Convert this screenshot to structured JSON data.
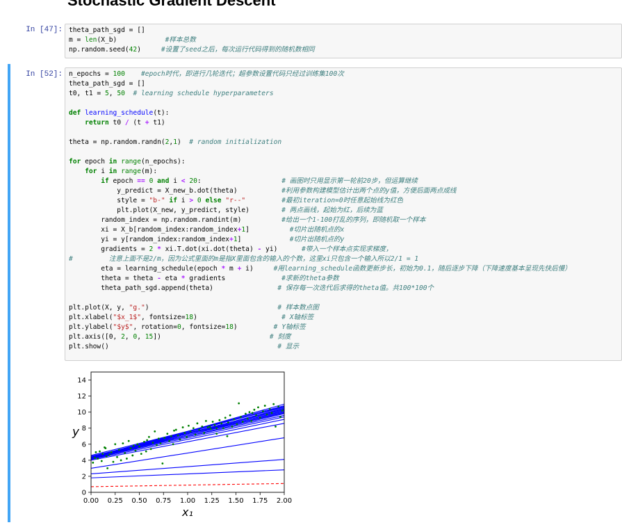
{
  "notebook": {
    "section_title": "Stochastic Gradient Descent"
  },
  "cells": [
    {
      "prompt": "In  [47]:",
      "lines": [
        [
          [
            "plain",
            "theta_path_sgd = []"
          ]
        ],
        [
          [
            "plain",
            "m = "
          ],
          [
            "bi",
            "len"
          ],
          [
            "plain",
            "(X_b)"
          ],
          [
            "plain",
            "            "
          ],
          [
            "cmt",
            "#样本总数"
          ]
        ],
        [
          [
            "plain",
            "np.random.seed("
          ],
          [
            "num",
            "42"
          ],
          [
            "plain",
            ")"
          ],
          [
            "plain",
            "     "
          ],
          [
            "cmt",
            "#设置了seed之后，每次运行代码得到的随机数相同"
          ]
        ]
      ]
    },
    {
      "prompt": "In  [52]:",
      "lines": [
        [
          [
            "plain",
            "n_epochs = "
          ],
          [
            "num",
            "100"
          ],
          [
            "plain",
            "    "
          ],
          [
            "cmt",
            "#epoch时代，即进行几轮迭代；超参数设置代码只经过训练集100次"
          ]
        ],
        [
          [
            "plain",
            "theta_path_sgd = []"
          ]
        ],
        [
          [
            "plain",
            "t0, t1 = "
          ],
          [
            "num",
            "5"
          ],
          [
            "plain",
            ", "
          ],
          [
            "num",
            "50"
          ],
          [
            "plain",
            "  "
          ],
          [
            "cmt",
            "# learning schedule hyperparameters"
          ]
        ],
        [],
        [
          [
            "kw",
            "def"
          ],
          [
            "plain",
            " "
          ],
          [
            "fn",
            "learning_schedule"
          ],
          [
            "plain",
            "(t):"
          ]
        ],
        [
          [
            "plain",
            "    "
          ],
          [
            "kw",
            "return"
          ],
          [
            "plain",
            " t0 "
          ],
          [
            "op",
            "/"
          ],
          [
            "plain",
            " (t "
          ],
          [
            "op",
            "+"
          ],
          [
            "plain",
            " t1)"
          ]
        ],
        [],
        [
          [
            "plain",
            "theta = np.random.randn("
          ],
          [
            "num",
            "2"
          ],
          [
            "plain",
            ","
          ],
          [
            "num",
            "1"
          ],
          [
            "plain",
            ")  "
          ],
          [
            "cmt",
            "# random initialization"
          ]
        ],
        [],
        [
          [
            "kw",
            "for"
          ],
          [
            "plain",
            " epoch "
          ],
          [
            "kw",
            "in"
          ],
          [
            "plain",
            " "
          ],
          [
            "bi",
            "range"
          ],
          [
            "plain",
            "(n_epochs):"
          ]
        ],
        [
          [
            "plain",
            "    "
          ],
          [
            "kw",
            "for"
          ],
          [
            "plain",
            " i "
          ],
          [
            "kw",
            "in"
          ],
          [
            "plain",
            " "
          ],
          [
            "bi",
            "range"
          ],
          [
            "plain",
            "(m):"
          ]
        ],
        [
          [
            "plain",
            "        "
          ],
          [
            "kw",
            "if"
          ],
          [
            "plain",
            " epoch "
          ],
          [
            "op",
            "=="
          ],
          [
            "plain",
            " "
          ],
          [
            "num",
            "0"
          ],
          [
            "plain",
            " "
          ],
          [
            "kw",
            "and"
          ],
          [
            "plain",
            " i "
          ],
          [
            "op",
            "<"
          ],
          [
            "plain",
            " "
          ],
          [
            "num",
            "20"
          ],
          [
            "plain",
            ":                    "
          ],
          [
            "cmt",
            "# 画图时只用显示第一轮前20步，但运算继续"
          ]
        ],
        [
          [
            "plain",
            "            y_predict = X_new_b.dot(theta)           "
          ],
          [
            "cmt",
            "#利用参数构建模型估计出两个点的y值，方便后面两点成线"
          ]
        ],
        [
          [
            "plain",
            "            style = "
          ],
          [
            "str",
            "\"b-\""
          ],
          [
            "plain",
            " "
          ],
          [
            "kw",
            "if"
          ],
          [
            "plain",
            " i "
          ],
          [
            "op",
            ">"
          ],
          [
            "plain",
            " "
          ],
          [
            "num",
            "0"
          ],
          [
            "plain",
            " "
          ],
          [
            "kw",
            "else"
          ],
          [
            "plain",
            " "
          ],
          [
            "str",
            "\"r--\""
          ],
          [
            "plain",
            "         "
          ],
          [
            "cmt",
            "#最初iteration=0时任意起始线为红色"
          ]
        ],
        [
          [
            "plain",
            "            plt.plot(X_new, y_predict, style)        "
          ],
          [
            "cmt",
            "# 两点画线，起始为红，后续为蓝"
          ]
        ],
        [
          [
            "plain",
            "        random_index = np.random.randint(m)          "
          ],
          [
            "cmt",
            "#给出一个1-100打乱的序列，即随机取一个样本"
          ]
        ],
        [
          [
            "plain",
            "        xi = X_b[random_index:random_index"
          ],
          [
            "op",
            "+"
          ],
          [
            "num",
            "1"
          ],
          [
            "plain",
            "]          "
          ],
          [
            "cmt",
            "#切片出随机点的x"
          ]
        ],
        [
          [
            "plain",
            "        yi = y[random_index:random_index"
          ],
          [
            "op",
            "+"
          ],
          [
            "num",
            "1"
          ],
          [
            "plain",
            "]            "
          ],
          [
            "cmt",
            "#切片出随机点的y"
          ]
        ],
        [
          [
            "plain",
            "        gradients = "
          ],
          [
            "num",
            "2"
          ],
          [
            "plain",
            " "
          ],
          [
            "op",
            "*"
          ],
          [
            "plain",
            " xi.T.dot(xi.dot(theta) "
          ],
          [
            "op",
            "-"
          ],
          [
            "plain",
            " yi)      "
          ],
          [
            "cmt",
            "#带入一个样本点实现求梯度，"
          ]
        ],
        [
          [
            "cmt",
            "#         注意上面不是2/m，因为公式里面的m是指X里面包含的输入的个数，这里xi只包含一个输入所以2/1 = 1"
          ]
        ],
        [
          [
            "plain",
            "        eta = learning_schedule(epoch "
          ],
          [
            "op",
            "*"
          ],
          [
            "plain",
            " m "
          ],
          [
            "op",
            "+"
          ],
          [
            "plain",
            " i)     "
          ],
          [
            "cmt",
            "#用learning_schedule函数更新步长，初始为0.1，随后逐步下降（下降速度基本呈现先快后慢）"
          ]
        ],
        [
          [
            "plain",
            "        theta = theta "
          ],
          [
            "op",
            "-"
          ],
          [
            "plain",
            " eta "
          ],
          [
            "op",
            "*"
          ],
          [
            "plain",
            " gradients              "
          ],
          [
            "cmt",
            "#求新的theta参数"
          ]
        ],
        [
          [
            "plain",
            "        theta_path_sgd.append(theta)                "
          ],
          [
            "cmt",
            "# 保存每一次迭代后求得的theta值。共100*100个"
          ]
        ],
        [],
        [
          [
            "plain",
            "plt.plot(X, y, "
          ],
          [
            "str",
            "\"g.\""
          ],
          [
            "plain",
            ")                                "
          ],
          [
            "cmt",
            "# 样本数点图"
          ]
        ],
        [
          [
            "plain",
            "plt.xlabel("
          ],
          [
            "str",
            "\"$x_1$\""
          ],
          [
            "plain",
            ", fontsize="
          ],
          [
            "num",
            "18"
          ],
          [
            "plain",
            ")                     "
          ],
          [
            "cmt",
            "# X轴标签"
          ]
        ],
        [
          [
            "plain",
            "plt.ylabel("
          ],
          [
            "str",
            "\"$y$\""
          ],
          [
            "plain",
            ", rotation="
          ],
          [
            "num",
            "0"
          ],
          [
            "plain",
            ", fontsize="
          ],
          [
            "num",
            "18"
          ],
          [
            "plain",
            ")         "
          ],
          [
            "cmt",
            "# Y轴标签"
          ]
        ],
        [
          [
            "plain",
            "plt.axis([0, "
          ],
          [
            "num",
            "2"
          ],
          [
            "plain",
            ", "
          ],
          [
            "num",
            "0"
          ],
          [
            "plain",
            ", "
          ],
          [
            "num",
            "15"
          ],
          [
            "plain",
            "])                           "
          ],
          [
            "cmt",
            "# 刻度"
          ]
        ],
        [
          [
            "plain",
            "plt.show()                                          "
          ],
          [
            "cmt",
            "# 显示"
          ]
        ]
      ]
    }
  ],
  "chart_data": {
    "type": "scatter",
    "xlabel": "x₁",
    "ylabel": "y",
    "xlim": [
      0,
      2
    ],
    "ylim": [
      0,
      15
    ],
    "xticks": [
      "0.00",
      "0.25",
      "0.50",
      "0.75",
      "1.00",
      "1.25",
      "1.50",
      "1.75",
      "2.00"
    ],
    "yticks": [
      "0",
      "2",
      "4",
      "6",
      "8",
      "10",
      "12",
      "14"
    ],
    "grid": false,
    "points_color": "#008000",
    "line_color": "#0000ff",
    "initial_line_color": "#ff0000",
    "points": [
      [
        0.02,
        3.7
      ],
      [
        0.04,
        4.3
      ],
      [
        0.05,
        5.0
      ],
      [
        0.07,
        4.2
      ],
      [
        0.09,
        5.1
      ],
      [
        0.11,
        3.9
      ],
      [
        0.12,
        4.8
      ],
      [
        0.14,
        5.6
      ],
      [
        0.16,
        4.5
      ],
      [
        0.17,
        3.0
      ],
      [
        0.19,
        4.7
      ],
      [
        0.21,
        5.0
      ],
      [
        0.23,
        3.8
      ],
      [
        0.25,
        6.0
      ],
      [
        0.27,
        4.4
      ],
      [
        0.29,
        5.3
      ],
      [
        0.31,
        4.0
      ],
      [
        0.33,
        6.1
      ],
      [
        0.35,
        4.9
      ],
      [
        0.37,
        4.2
      ],
      [
        0.39,
        6.4
      ],
      [
        0.41,
        5.5
      ],
      [
        0.43,
        4.6
      ],
      [
        0.46,
        5.2
      ],
      [
        0.48,
        6.0
      ],
      [
        0.5,
        5.7
      ],
      [
        0.52,
        4.8
      ],
      [
        0.55,
        6.3
      ],
      [
        0.57,
        5.1
      ],
      [
        0.6,
        6.9
      ],
      [
        0.62,
        5.4
      ],
      [
        0.64,
        6.2
      ],
      [
        0.66,
        7.6
      ],
      [
        0.68,
        5.9
      ],
      [
        0.7,
        6.7
      ],
      [
        0.72,
        6.1
      ],
      [
        0.74,
        3.6
      ],
      [
        0.76,
        6.8
      ],
      [
        0.79,
        7.3
      ],
      [
        0.81,
        6.4
      ],
      [
        0.83,
        7.0
      ],
      [
        0.85,
        6.0
      ],
      [
        0.88,
        7.8
      ],
      [
        0.9,
        7.1
      ],
      [
        0.92,
        6.6
      ],
      [
        0.95,
        8.1
      ],
      [
        0.97,
        7.4
      ],
      [
        0.99,
        6.9
      ],
      [
        1.01,
        8.3
      ],
      [
        1.03,
        7.6
      ],
      [
        1.06,
        8.0
      ],
      [
        1.08,
        7.2
      ],
      [
        1.1,
        8.6
      ],
      [
        1.12,
        7.8
      ],
      [
        1.15,
        8.2
      ],
      [
        1.17,
        7.4
      ],
      [
        1.19,
        8.9
      ],
      [
        1.21,
        8.1
      ],
      [
        1.24,
        7.9
      ],
      [
        1.26,
        8.8
      ],
      [
        1.28,
        8.4
      ],
      [
        1.3,
        7.3
      ],
      [
        1.33,
        9.0
      ],
      [
        1.35,
        8.6
      ],
      [
        1.37,
        8.0
      ],
      [
        1.39,
        9.3
      ],
      [
        1.42,
        8.7
      ],
      [
        1.44,
        9.6
      ],
      [
        1.46,
        8.2
      ],
      [
        1.48,
        9.1
      ],
      [
        1.51,
        8.5
      ],
      [
        1.53,
        11.1
      ],
      [
        1.55,
        9.4
      ],
      [
        1.57,
        8.8
      ],
      [
        1.6,
        9.8
      ],
      [
        1.62,
        9.2
      ],
      [
        1.64,
        10.0
      ],
      [
        1.66,
        8.9
      ],
      [
        1.69,
        10.3
      ],
      [
        1.71,
        9.6
      ],
      [
        1.73,
        10.6
      ],
      [
        1.75,
        9.3
      ],
      [
        1.78,
        10.1
      ],
      [
        1.8,
        10.8
      ],
      [
        1.82,
        9.7
      ],
      [
        1.85,
        10.4
      ],
      [
        1.87,
        9.9
      ],
      [
        1.89,
        11.0
      ],
      [
        1.91,
        8.2
      ],
      [
        1.94,
        10.7
      ],
      [
        1.96,
        9.4
      ],
      [
        1.98,
        10.2
      ],
      [
        1.3,
        8.0
      ],
      [
        0.58,
        6.5
      ],
      [
        0.86,
        7.7
      ],
      [
        1.41,
        7.0
      ],
      [
        1.67,
        9.9
      ],
      [
        0.44,
        5.8
      ],
      [
        0.15,
        5.5
      ],
      [
        1.23,
        8.2
      ]
    ],
    "lines": [
      {
        "style": "r--",
        "y0": 0.7,
        "y2": 1.1
      },
      {
        "style": "b-",
        "y0": 1.8,
        "y2": 2.8
      },
      {
        "style": "b-",
        "y0": 2.3,
        "y2": 4.1
      },
      {
        "style": "b-",
        "y0": 3.0,
        "y2": 6.8
      },
      {
        "style": "b-",
        "y0": 4.0,
        "y2": 8.6
      },
      {
        "style": "b-",
        "y0": 4.1,
        "y2": 9.1
      },
      {
        "style": "b-",
        "y0": 4.2,
        "y2": 9.4
      },
      {
        "style": "b-",
        "y0": 4.3,
        "y2": 9.6
      },
      {
        "style": "b-",
        "y0": 4.2,
        "y2": 9.8
      },
      {
        "style": "b-",
        "y0": 4.4,
        "y2": 9.9
      },
      {
        "style": "b-",
        "y0": 4.3,
        "y2": 10.0
      },
      {
        "style": "b-",
        "y0": 4.5,
        "y2": 10.1
      },
      {
        "style": "b-",
        "y0": 4.1,
        "y2": 10.2
      },
      {
        "style": "b-",
        "y0": 4.3,
        "y2": 10.3
      },
      {
        "style": "b-",
        "y0": 4.4,
        "y2": 10.4
      },
      {
        "style": "b-",
        "y0": 4.2,
        "y2": 10.5
      },
      {
        "style": "b-",
        "y0": 4.6,
        "y2": 10.6
      },
      {
        "style": "b-",
        "y0": 4.3,
        "y2": 10.7
      },
      {
        "style": "b-",
        "y0": 4.4,
        "y2": 10.8
      },
      {
        "style": "b-",
        "y0": 4.2,
        "y2": 11.0
      }
    ]
  }
}
